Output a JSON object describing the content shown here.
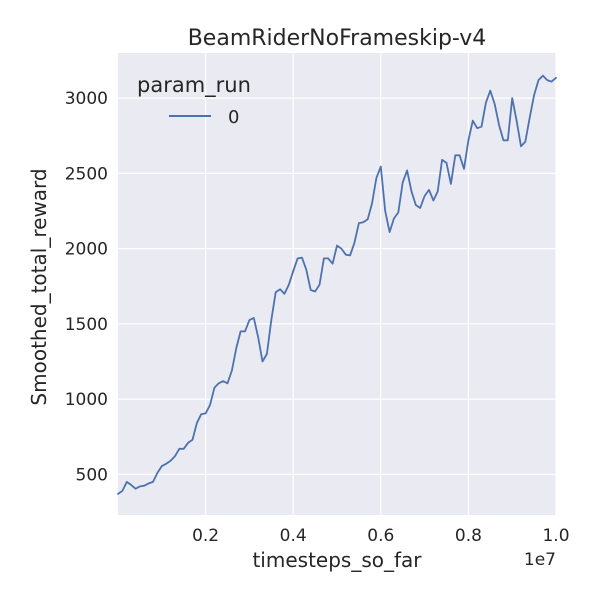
{
  "chart_data": {
    "type": "line",
    "title": "BeamRiderNoFrameskip-v4",
    "xlabel": "timesteps_so_far",
    "ylabel": "Smoothed_total_reward",
    "x_offset_label": "1e7",
    "xlim": [
      0.0,
      1.0
    ],
    "ylim": [
      230,
      3300
    ],
    "x_ticks": [
      0.2,
      0.4,
      0.6,
      0.8,
      1.0
    ],
    "x_tick_labels": [
      "0.2",
      "0.4",
      "0.6",
      "0.8",
      "1.0"
    ],
    "y_ticks": [
      500,
      1000,
      1500,
      2000,
      2500,
      3000
    ],
    "y_tick_labels": [
      "500",
      "1000",
      "1500",
      "2000",
      "2500",
      "3000"
    ],
    "grid": true,
    "legend": {
      "title": "param_run",
      "placement": "top-left"
    },
    "series": [
      {
        "name": "0",
        "color": "#4c72b0",
        "x": [
          0.0,
          0.01,
          0.02,
          0.03,
          0.04,
          0.05,
          0.06,
          0.07,
          0.08,
          0.09,
          0.1,
          0.11,
          0.12,
          0.13,
          0.14,
          0.15,
          0.16,
          0.17,
          0.18,
          0.19,
          0.2,
          0.21,
          0.22,
          0.23,
          0.24,
          0.25,
          0.26,
          0.27,
          0.28,
          0.29,
          0.3,
          0.31,
          0.32,
          0.33,
          0.34,
          0.35,
          0.36,
          0.37,
          0.38,
          0.39,
          0.4,
          0.41,
          0.42,
          0.43,
          0.44,
          0.45,
          0.46,
          0.47,
          0.48,
          0.49,
          0.5,
          0.51,
          0.52,
          0.53,
          0.54,
          0.55,
          0.56,
          0.57,
          0.58,
          0.59,
          0.6,
          0.61,
          0.62,
          0.63,
          0.64,
          0.65,
          0.66,
          0.67,
          0.68,
          0.69,
          0.7,
          0.71,
          0.72,
          0.73,
          0.74,
          0.75,
          0.76,
          0.77,
          0.78,
          0.79,
          0.8,
          0.81,
          0.82,
          0.83,
          0.84,
          0.85,
          0.86,
          0.87,
          0.88,
          0.89,
          0.9,
          0.91,
          0.92,
          0.93,
          0.94,
          0.95,
          0.96,
          0.97,
          0.98,
          0.99,
          1.0
        ],
        "y": [
          370,
          390,
          450,
          430,
          405,
          420,
          425,
          440,
          450,
          510,
          555,
          570,
          590,
          620,
          670,
          670,
          710,
          730,
          840,
          900,
          905,
          960,
          1075,
          1105,
          1120,
          1105,
          1190,
          1340,
          1450,
          1450,
          1525,
          1540,
          1410,
          1250,
          1300,
          1525,
          1710,
          1730,
          1700,
          1760,
          1850,
          1935,
          1940,
          1860,
          1725,
          1715,
          1760,
          1935,
          1935,
          1900,
          2020,
          2000,
          1960,
          1955,
          2040,
          2170,
          2175,
          2195,
          2300,
          2470,
          2545,
          2250,
          2110,
          2200,
          2240,
          2440,
          2520,
          2380,
          2290,
          2270,
          2350,
          2390,
          2320,
          2380,
          2590,
          2570,
          2430,
          2620,
          2620,
          2530,
          2720,
          2850,
          2800,
          2810,
          2970,
          3050,
          2960,
          2820,
          2720,
          2720,
          3000,
          2850,
          2680,
          2710,
          2870,
          3020,
          3120,
          3150,
          3120,
          3110,
          3135
        ]
      }
    ]
  }
}
